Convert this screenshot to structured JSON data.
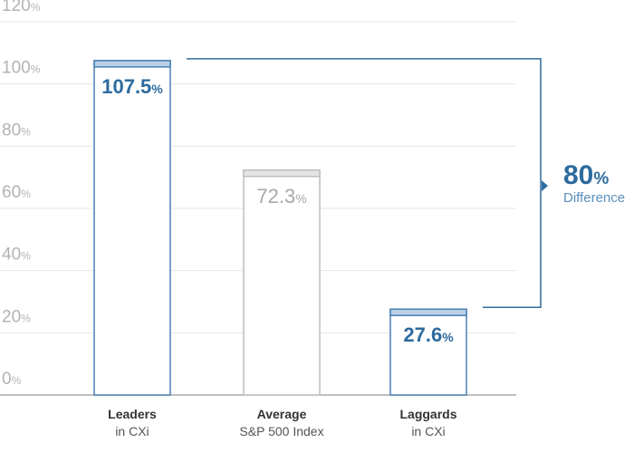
{
  "chart_data": {
    "type": "bar",
    "categories": [
      {
        "main": "Leaders",
        "sub": "in CXi"
      },
      {
        "main": "Average",
        "sub": "S&P 500 Index"
      },
      {
        "main": "Laggards",
        "sub": "in CXi"
      }
    ],
    "values": [
      107.5,
      72.3,
      27.6
    ],
    "value_labels": [
      "107.5",
      "72.3",
      "27.6"
    ],
    "value_unit": "%",
    "ylim": [
      0,
      120
    ],
    "y_ticks": [
      "0",
      "20",
      "40",
      "60",
      "80",
      "100",
      "120"
    ],
    "y_tick_unit": "%",
    "grid": true,
    "bar_colors": {
      "highlight": "#4a7fb5",
      "highlight_cap": "#b9d0e6",
      "muted": "#bdbdbd",
      "muted_cap": "#e4e4e4"
    },
    "bar_style": [
      "highlight",
      "muted",
      "highlight"
    ],
    "annotation": {
      "value": "80",
      "unit": "%",
      "label": "Difference",
      "color": "#2e6b9e",
      "between": [
        0,
        2
      ]
    }
  }
}
